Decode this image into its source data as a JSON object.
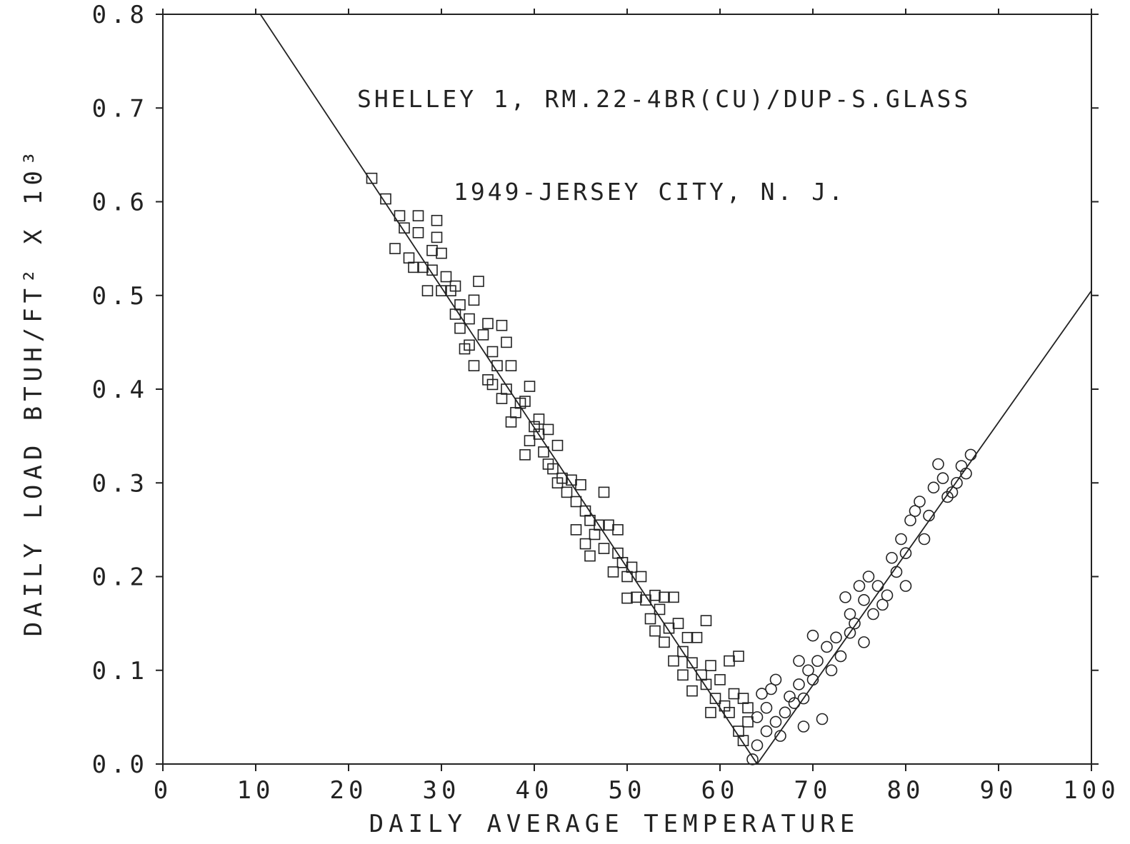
{
  "chart_data": {
    "type": "scatter",
    "title": "",
    "annotations": [
      "SHELLEY 1, RM.22-4BR(CU)/DUP-S.GLASS",
      "1949-JERSEY CITY, N. J."
    ],
    "xlabel": "DAILY AVERAGE TEMPERATURE",
    "ylabel": "DAILY LOAD BTUH/FT² X 10³",
    "xlim": [
      0,
      100
    ],
    "ylim": [
      0.0,
      0.8
    ],
    "x_ticks": [
      0,
      10,
      20,
      30,
      40,
      50,
      60,
      70,
      80,
      90,
      100
    ],
    "x_tick_labels": [
      "0",
      "10",
      "20",
      "30",
      "40",
      "50",
      "60",
      "70",
      "80",
      "90",
      "100"
    ],
    "y_ticks": [
      0.0,
      0.1,
      0.2,
      0.3,
      0.4,
      0.5,
      0.6,
      0.7,
      0.8
    ],
    "y_tick_labels": [
      "0.0",
      "0.1",
      "0.2",
      "0.3",
      "0.4",
      "0.5",
      "0.6",
      "0.7",
      "0.8"
    ],
    "grid": false,
    "legend": "none",
    "colors": {
      "ink": "#222222",
      "background": "#ffffff"
    },
    "fit_lines": [
      {
        "name": "heating",
        "x": [
          10.5,
          64.0
        ],
        "y": [
          0.8,
          0.0
        ]
      },
      {
        "name": "cooling",
        "x": [
          64.0,
          100.0
        ],
        "y": [
          0.0,
          0.505
        ]
      }
    ],
    "series": [
      {
        "marker": "square",
        "points": [
          [
            22.5,
            0.625
          ],
          [
            24.0,
            0.603
          ],
          [
            25.5,
            0.585
          ],
          [
            25.0,
            0.55
          ],
          [
            26.0,
            0.572
          ],
          [
            26.5,
            0.54
          ],
          [
            27.0,
            0.53
          ],
          [
            27.5,
            0.567
          ],
          [
            27.5,
            0.585
          ],
          [
            28.0,
            0.53
          ],
          [
            28.5,
            0.505
          ],
          [
            29.0,
            0.527
          ],
          [
            29.0,
            0.548
          ],
          [
            29.5,
            0.58
          ],
          [
            29.5,
            0.562
          ],
          [
            30.0,
            0.545
          ],
          [
            30.0,
            0.505
          ],
          [
            30.5,
            0.52
          ],
          [
            31.0,
            0.505
          ],
          [
            31.5,
            0.48
          ],
          [
            31.5,
            0.51
          ],
          [
            32.0,
            0.49
          ],
          [
            32.0,
            0.465
          ],
          [
            32.5,
            0.443
          ],
          [
            33.0,
            0.475
          ],
          [
            33.0,
            0.447
          ],
          [
            33.5,
            0.495
          ],
          [
            33.5,
            0.425
          ],
          [
            34.0,
            0.515
          ],
          [
            34.5,
            0.458
          ],
          [
            35.0,
            0.47
          ],
          [
            35.0,
            0.41
          ],
          [
            35.5,
            0.44
          ],
          [
            35.5,
            0.405
          ],
          [
            36.0,
            0.425
          ],
          [
            36.5,
            0.468
          ],
          [
            36.5,
            0.39
          ],
          [
            37.0,
            0.45
          ],
          [
            37.0,
            0.4
          ],
          [
            37.5,
            0.425
          ],
          [
            37.5,
            0.365
          ],
          [
            38.0,
            0.375
          ],
          [
            38.5,
            0.385
          ],
          [
            39.0,
            0.387
          ],
          [
            39.0,
            0.33
          ],
          [
            39.5,
            0.403
          ],
          [
            39.5,
            0.345
          ],
          [
            40.0,
            0.36
          ],
          [
            40.5,
            0.368
          ],
          [
            40.5,
            0.352
          ],
          [
            41.0,
            0.333
          ],
          [
            41.5,
            0.357
          ],
          [
            41.5,
            0.32
          ],
          [
            42.0,
            0.315
          ],
          [
            42.5,
            0.34
          ],
          [
            42.5,
            0.3
          ],
          [
            43.0,
            0.305
          ],
          [
            43.5,
            0.29
          ],
          [
            44.0,
            0.303
          ],
          [
            44.5,
            0.28
          ],
          [
            44.5,
            0.25
          ],
          [
            45.0,
            0.298
          ],
          [
            45.5,
            0.27
          ],
          [
            45.5,
            0.235
          ],
          [
            46.0,
            0.26
          ],
          [
            46.0,
            0.222
          ],
          [
            46.5,
            0.245
          ],
          [
            47.0,
            0.255
          ],
          [
            47.5,
            0.29
          ],
          [
            47.5,
            0.23
          ],
          [
            48.0,
            0.255
          ],
          [
            48.5,
            0.205
          ],
          [
            49.0,
            0.25
          ],
          [
            49.0,
            0.225
          ],
          [
            49.5,
            0.215
          ],
          [
            50.0,
            0.2
          ],
          [
            50.0,
            0.177
          ],
          [
            50.5,
            0.21
          ],
          [
            51.0,
            0.178
          ],
          [
            51.5,
            0.2
          ],
          [
            52.0,
            0.175
          ],
          [
            52.5,
            0.155
          ],
          [
            53.0,
            0.18
          ],
          [
            53.0,
            0.142
          ],
          [
            53.5,
            0.165
          ],
          [
            54.0,
            0.178
          ],
          [
            54.0,
            0.13
          ],
          [
            54.5,
            0.145
          ],
          [
            55.0,
            0.178
          ],
          [
            55.0,
            0.11
          ],
          [
            55.5,
            0.15
          ],
          [
            56.0,
            0.12
          ],
          [
            56.0,
            0.095
          ],
          [
            56.5,
            0.135
          ],
          [
            57.0,
            0.078
          ],
          [
            57.0,
            0.108
          ],
          [
            57.5,
            0.135
          ],
          [
            58.0,
            0.095
          ],
          [
            58.5,
            0.085
          ],
          [
            58.5,
            0.153
          ],
          [
            59.0,
            0.105
          ],
          [
            59.0,
            0.055
          ],
          [
            59.5,
            0.07
          ],
          [
            60.0,
            0.09
          ],
          [
            60.5,
            0.062
          ],
          [
            61.0,
            0.11
          ],
          [
            61.0,
            0.055
          ],
          [
            61.5,
            0.075
          ],
          [
            62.0,
            0.115
          ],
          [
            62.0,
            0.035
          ],
          [
            62.5,
            0.07
          ],
          [
            62.5,
            0.025
          ],
          [
            63.0,
            0.06
          ],
          [
            63.0,
            0.045
          ]
        ]
      },
      {
        "marker": "circle",
        "points": [
          [
            63.5,
            0.005
          ],
          [
            64.0,
            0.02
          ],
          [
            64.0,
            0.05
          ],
          [
            64.5,
            0.075
          ],
          [
            65.0,
            0.035
          ],
          [
            65.0,
            0.06
          ],
          [
            65.5,
            0.08
          ],
          [
            66.0,
            0.09
          ],
          [
            66.0,
            0.045
          ],
          [
            66.5,
            0.03
          ],
          [
            67.0,
            0.055
          ],
          [
            67.5,
            0.072
          ],
          [
            68.0,
            0.065
          ],
          [
            68.5,
            0.085
          ],
          [
            68.5,
            0.11
          ],
          [
            69.0,
            0.04
          ],
          [
            69.0,
            0.07
          ],
          [
            69.5,
            0.1
          ],
          [
            70.0,
            0.137
          ],
          [
            70.0,
            0.09
          ],
          [
            70.5,
            0.11
          ],
          [
            71.0,
            0.048
          ],
          [
            71.5,
            0.125
          ],
          [
            72.0,
            0.1
          ],
          [
            72.5,
            0.135
          ],
          [
            73.0,
            0.115
          ],
          [
            73.5,
            0.178
          ],
          [
            74.0,
            0.14
          ],
          [
            74.0,
            0.16
          ],
          [
            74.5,
            0.15
          ],
          [
            75.0,
            0.19
          ],
          [
            75.5,
            0.13
          ],
          [
            75.5,
            0.175
          ],
          [
            76.0,
            0.2
          ],
          [
            76.5,
            0.16
          ],
          [
            77.0,
            0.19
          ],
          [
            77.5,
            0.17
          ],
          [
            78.0,
            0.18
          ],
          [
            78.5,
            0.22
          ],
          [
            79.0,
            0.205
          ],
          [
            79.5,
            0.24
          ],
          [
            80.0,
            0.19
          ],
          [
            80.0,
            0.225
          ],
          [
            80.5,
            0.26
          ],
          [
            81.0,
            0.27
          ],
          [
            81.5,
            0.28
          ],
          [
            82.0,
            0.24
          ],
          [
            82.5,
            0.265
          ],
          [
            83.0,
            0.295
          ],
          [
            83.5,
            0.32
          ],
          [
            84.0,
            0.305
          ],
          [
            84.5,
            0.285
          ],
          [
            85.0,
            0.29
          ],
          [
            85.5,
            0.3
          ],
          [
            86.0,
            0.318
          ],
          [
            86.5,
            0.31
          ],
          [
            87.0,
            0.33
          ]
        ]
      }
    ]
  }
}
